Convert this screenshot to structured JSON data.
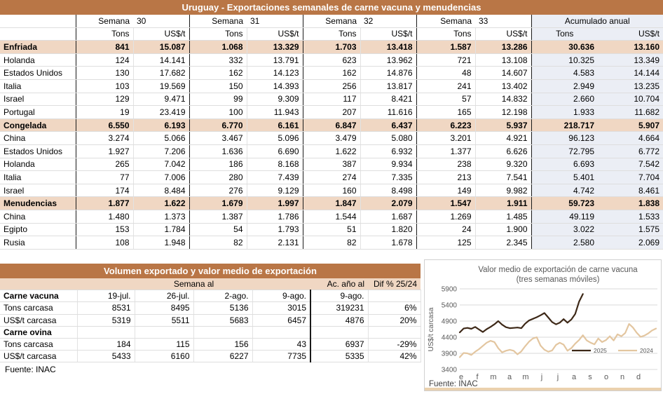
{
  "colors": {
    "title_bar": "#b97646",
    "subtotal_bg": "#f0d7c3",
    "accum_bg": "#ebeef5",
    "grid_line": "#d9d9d9",
    "axis_text": "#595959",
    "bottom_strip": "#ebd1ae"
  },
  "top_table": {
    "title": "Uruguay - Exportaciones semanales de carne vacuna y menudencias",
    "week_label": "Semana",
    "weeks": [
      "30",
      "31",
      "32",
      "33"
    ],
    "acumulado_label": "Acumulado anual",
    "unit_tons": "Tons",
    "unit_usd": "US$/t",
    "rows": [
      {
        "label": "Enfriada",
        "type": "subtotal",
        "values": [
          "841",
          "15.087",
          "1.068",
          "13.329",
          "1.703",
          "13.418",
          "1.587",
          "13.286",
          "30.636",
          "13.160"
        ]
      },
      {
        "label": "Holanda",
        "type": "detail",
        "values": [
          "124",
          "14.141",
          "332",
          "13.791",
          "623",
          "13.962",
          "721",
          "13.108",
          "10.325",
          "13.349"
        ]
      },
      {
        "label": "Estados Unidos",
        "type": "detail",
        "values": [
          "130",
          "17.682",
          "162",
          "14.123",
          "162",
          "14.876",
          "48",
          "14.607",
          "4.583",
          "14.144"
        ]
      },
      {
        "label": "Italia",
        "type": "detail",
        "values": [
          "103",
          "19.569",
          "150",
          "14.393",
          "256",
          "13.817",
          "241",
          "13.402",
          "2.949",
          "13.235"
        ]
      },
      {
        "label": "Israel",
        "type": "detail",
        "values": [
          "129",
          "9.471",
          "99",
          "9.309",
          "117",
          "8.421",
          "57",
          "14.832",
          "2.660",
          "10.704"
        ]
      },
      {
        "label": "Portugal",
        "type": "detail",
        "values": [
          "19",
          "23.419",
          "100",
          "11.943",
          "207",
          "11.616",
          "165",
          "12.198",
          "1.933",
          "11.682"
        ]
      },
      {
        "label": "Congelada",
        "type": "subtotal",
        "values": [
          "6.550",
          "6.193",
          "6.770",
          "6.161",
          "6.847",
          "6.437",
          "6.223",
          "5.937",
          "218.717",
          "5.907"
        ]
      },
      {
        "label": "China",
        "type": "detail",
        "values": [
          "3.274",
          "5.066",
          "3.467",
          "5.096",
          "3.479",
          "5.080",
          "3.201",
          "4.921",
          "96.123",
          "4.664"
        ]
      },
      {
        "label": "Estados Unidos",
        "type": "detail",
        "values": [
          "1.927",
          "7.206",
          "1.636",
          "6.690",
          "1.622",
          "6.932",
          "1.377",
          "6.626",
          "72.795",
          "6.772"
        ]
      },
      {
        "label": "Holanda",
        "type": "detail",
        "values": [
          "265",
          "7.042",
          "186",
          "8.168",
          "387",
          "9.934",
          "238",
          "9.320",
          "6.693",
          "7.542"
        ]
      },
      {
        "label": "Italia",
        "type": "detail",
        "values": [
          "77",
          "7.006",
          "280",
          "7.439",
          "274",
          "7.335",
          "213",
          "7.541",
          "5.401",
          "7.704"
        ]
      },
      {
        "label": "Israel",
        "type": "detail",
        "values": [
          "174",
          "8.484",
          "276",
          "9.129",
          "160",
          "8.498",
          "149",
          "9.982",
          "4.742",
          "8.461"
        ]
      },
      {
        "label": "Menudencias",
        "type": "subtotal",
        "values": [
          "1.877",
          "1.622",
          "1.679",
          "1.997",
          "1.847",
          "2.079",
          "1.547",
          "1.911",
          "59.723",
          "1.838"
        ]
      },
      {
        "label": "China",
        "type": "detail",
        "values": [
          "1.480",
          "1.373",
          "1.387",
          "1.786",
          "1.544",
          "1.687",
          "1.269",
          "1.485",
          "49.119",
          "1.533"
        ]
      },
      {
        "label": "Egipto",
        "type": "detail",
        "values": [
          "153",
          "1.784",
          "54",
          "1.793",
          "51",
          "1.820",
          "24",
          "1.900",
          "3.022",
          "1.575"
        ]
      },
      {
        "label": "Rusia",
        "type": "detail",
        "values": [
          "108",
          "1.948",
          "82",
          "2.131",
          "82",
          "1.678",
          "125",
          "2.345",
          "2.580",
          "2.069"
        ]
      }
    ]
  },
  "bottom_table": {
    "title": "Volumen exportado y valor medio de exportación",
    "header": {
      "semana_al": "Semana al",
      "ac_ano_al": "Ac. año al",
      "dif": "Dif % 25/24"
    },
    "rows": [
      {
        "label": "Carne vacuna",
        "bold": true,
        "values": [
          "19-jul.",
          "26-jul.",
          "2-ago.",
          "9-ago.",
          "9-ago.",
          ""
        ]
      },
      {
        "label": "Tons carcasa",
        "bold": false,
        "values": [
          "8531",
          "8495",
          "5136",
          "3015",
          "319231",
          "6%"
        ]
      },
      {
        "label": "US$/t carcasa",
        "bold": false,
        "values": [
          "5319",
          "5511",
          "5683",
          "6457",
          "4876",
          "20%"
        ]
      },
      {
        "label": "Carne ovina",
        "bold": true,
        "values": [
          "",
          "",
          "",
          "",
          "",
          ""
        ]
      },
      {
        "label": "Tons carcasa",
        "bold": false,
        "values": [
          "184",
          "115",
          "156",
          "43",
          "6937",
          "-29%"
        ]
      },
      {
        "label": "US$/t carcasa",
        "bold": false,
        "values": [
          "5433",
          "6160",
          "6227",
          "7735",
          "5335",
          "42%"
        ]
      }
    ],
    "fuente": "Fuente: INAC"
  },
  "chart_data": {
    "type": "line",
    "title": "Valor medio de exportación de carne vacuna",
    "subtitle": "(tres semanas móviles)",
    "ylabel": "US$/t carcasa",
    "ylim": [
      3400,
      5900
    ],
    "yticks": [
      3400,
      3900,
      4400,
      4900,
      5400,
      5900
    ],
    "xticklabels": [
      "e",
      "f",
      "m",
      "a",
      "m",
      "j",
      "j",
      "a",
      "s",
      "o",
      "n",
      "d"
    ],
    "x_unit": "semana del año (52 semanas)",
    "grid": true,
    "legend_position": "inside-bottom-right",
    "series": [
      {
        "name": "2025",
        "color": "#3d2817",
        "values": [
          4550,
          4670,
          4690,
          4660,
          4720,
          4640,
          4560,
          4650,
          4720,
          4800,
          4900,
          4790,
          4710,
          4680,
          4690,
          4700,
          4680,
          4820,
          4920,
          4970,
          5020,
          5080,
          5150,
          5010,
          4870,
          4800,
          4850,
          4960,
          4850,
          4950,
          5120,
          5500,
          5740
        ]
      },
      {
        "name": "2024",
        "color": "#e3c6a0",
        "values": [
          3780,
          3910,
          3900,
          3850,
          3950,
          4030,
          4130,
          4230,
          4290,
          4250,
          4060,
          3930,
          3980,
          4010,
          3980,
          3870,
          3960,
          4120,
          4260,
          4360,
          4400,
          4140,
          4010,
          3950,
          3990,
          4160,
          4230,
          4170,
          3980,
          4060,
          4200,
          4310,
          4460,
          4300,
          4230,
          4180,
          4360,
          4250,
          4310,
          4430,
          4300,
          4490,
          4430,
          4530,
          4810,
          4700,
          4540,
          4410,
          4450,
          4520,
          4610,
          4670
        ]
      }
    ],
    "fuente": "Fuente: INAC"
  }
}
